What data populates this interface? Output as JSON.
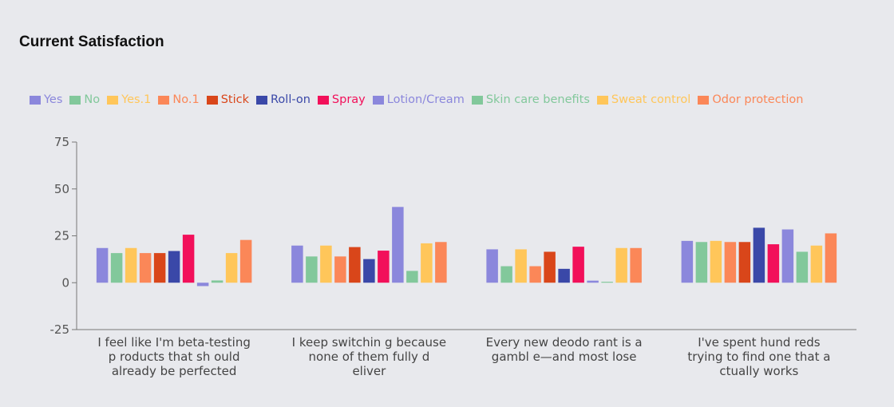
{
  "chart_data": {
    "type": "bar",
    "title": "Current Satisfaction",
    "xlabel": "",
    "ylabel": "",
    "ylim": [
      -25,
      75
    ],
    "yticks": [
      75,
      50,
      25,
      0,
      -25
    ],
    "grid": false,
    "legend_position": "top",
    "categories": [
      [
        "I feel like I'm beta-testing",
        "p roducts that sh ould",
        "already be perfected"
      ],
      [
        "I keep switchin g because",
        "none of them fully d",
        "eliver"
      ],
      [
        "Every new deodo rant is a",
        "gambl e—and most lose"
      ],
      [
        "I've spent hund reds",
        "trying to find one that a",
        "ctually works"
      ]
    ],
    "series": [
      {
        "name": "Yes",
        "color": "#8b87dc",
        "values": [
          18.5,
          19.8,
          17.8,
          22.3
        ]
      },
      {
        "name": "No",
        "color": "#82c89b",
        "values": [
          15.8,
          14.0,
          8.8,
          21.7
        ]
      },
      {
        "name": "Yes.1",
        "color": "#ffc65a",
        "values": [
          18.5,
          19.8,
          17.8,
          22.3
        ]
      },
      {
        "name": "No.1",
        "color": "#fb8758",
        "values": [
          15.8,
          14.0,
          8.8,
          21.7
        ]
      },
      {
        "name": "Stick",
        "color": "#d9461a",
        "values": [
          15.8,
          19.0,
          16.5,
          21.7
        ]
      },
      {
        "name": "Roll-on",
        "color": "#3a48a8",
        "values": [
          16.9,
          12.6,
          7.4,
          29.3
        ]
      },
      {
        "name": "Spray",
        "color": "#f2105a",
        "values": [
          25.6,
          17.1,
          19.2,
          20.5
        ]
      },
      {
        "name": "Lotion/Cream",
        "color": "#8b87dc",
        "values": [
          -1.8,
          40.4,
          1.1,
          28.4
        ]
      },
      {
        "name": "Skin care benefits",
        "color": "#82c89b",
        "values": [
          1.2,
          6.3,
          0.5,
          16.5
        ]
      },
      {
        "name": "Sweat control",
        "color": "#ffc65a",
        "values": [
          15.8,
          21.0,
          18.5,
          19.8
        ]
      },
      {
        "name": "Odor protection",
        "color": "#fb8758",
        "values": [
          22.8,
          21.7,
          18.5,
          26.3
        ]
      }
    ]
  }
}
